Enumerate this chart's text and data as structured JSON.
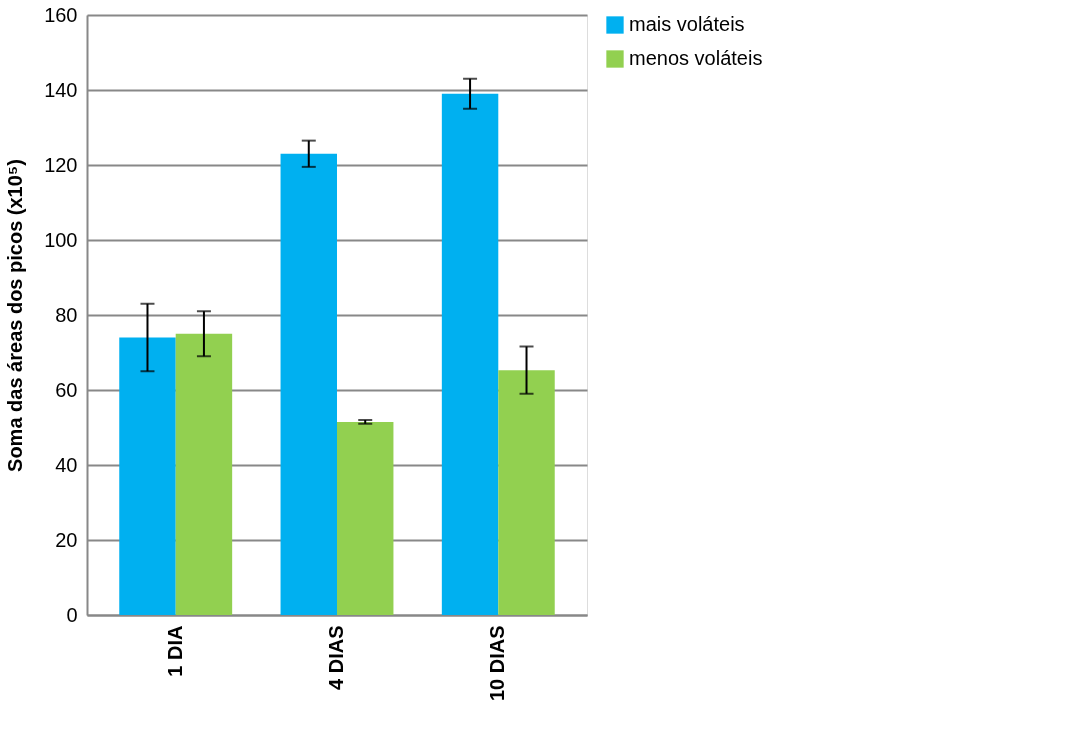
{
  "chart_data": {
    "type": "bar",
    "ylabel": "Soma das áreas dos picos  (x10⁵)",
    "categories": [
      "1 DIA",
      "4 DIAS",
      "10 DIAS"
    ],
    "series": [
      {
        "name": "mais voláteis",
        "color": "#00b0f0",
        "values": [
          74,
          123,
          139
        ],
        "errors": [
          9,
          3.5,
          4
        ]
      },
      {
        "name": "menos voláteis",
        "color": "#92d050",
        "values": [
          75,
          51.5,
          65.3
        ],
        "errors": [
          6,
          0.5,
          6.3
        ]
      }
    ],
    "ylim": [
      0,
      160
    ],
    "yticks": [
      0,
      20,
      40,
      60,
      80,
      100,
      120,
      140,
      160
    ],
    "grid": "y",
    "legend": "top right"
  }
}
